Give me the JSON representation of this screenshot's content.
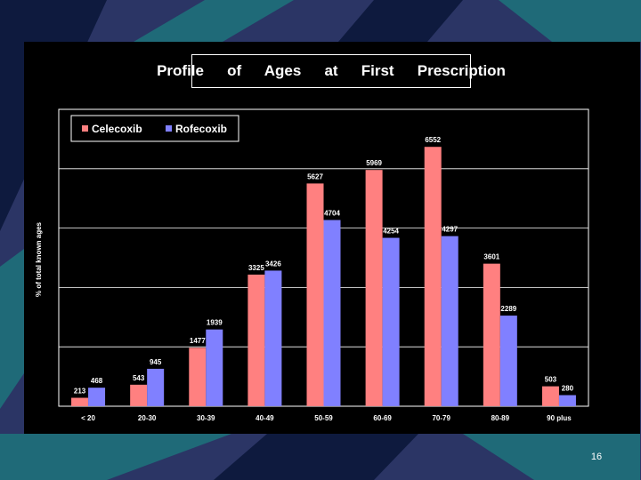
{
  "slide": {
    "title": "Profile   of   Ages   at   First   Prescription",
    "slide_number": "16"
  },
  "colors": {
    "background": "#2b3565",
    "stripe_dark": "#0e1a3e",
    "stripe_teal": "#1f6a78",
    "panel": "#000000",
    "celecoxib": "#ff8080",
    "rofecoxib": "#8080ff"
  },
  "chart_data": {
    "type": "bar",
    "title": "Profile   of   Ages   at   First   Prescription",
    "xlabel": "",
    "ylabel": "% of total known ages",
    "categories": [
      "< 20",
      "20-30",
      "30-39",
      "40-49",
      "50-59",
      "60-69",
      "70-79",
      "80-89",
      "90 plus"
    ],
    "series": [
      {
        "name": "Celecoxib",
        "color": "#ff8080",
        "values": [
          213,
          543,
          1477,
          3325,
          5627,
          5969,
          6552,
          3601,
          503
        ]
      },
      {
        "name": "Rofecoxib",
        "color": "#8080ff",
        "values": [
          468,
          945,
          1939,
          3426,
          4704,
          4254,
          4297,
          2289,
          280
        ]
      }
    ],
    "ylim": [
      0,
      7500
    ],
    "grid": true,
    "legend_position": "top-left"
  }
}
